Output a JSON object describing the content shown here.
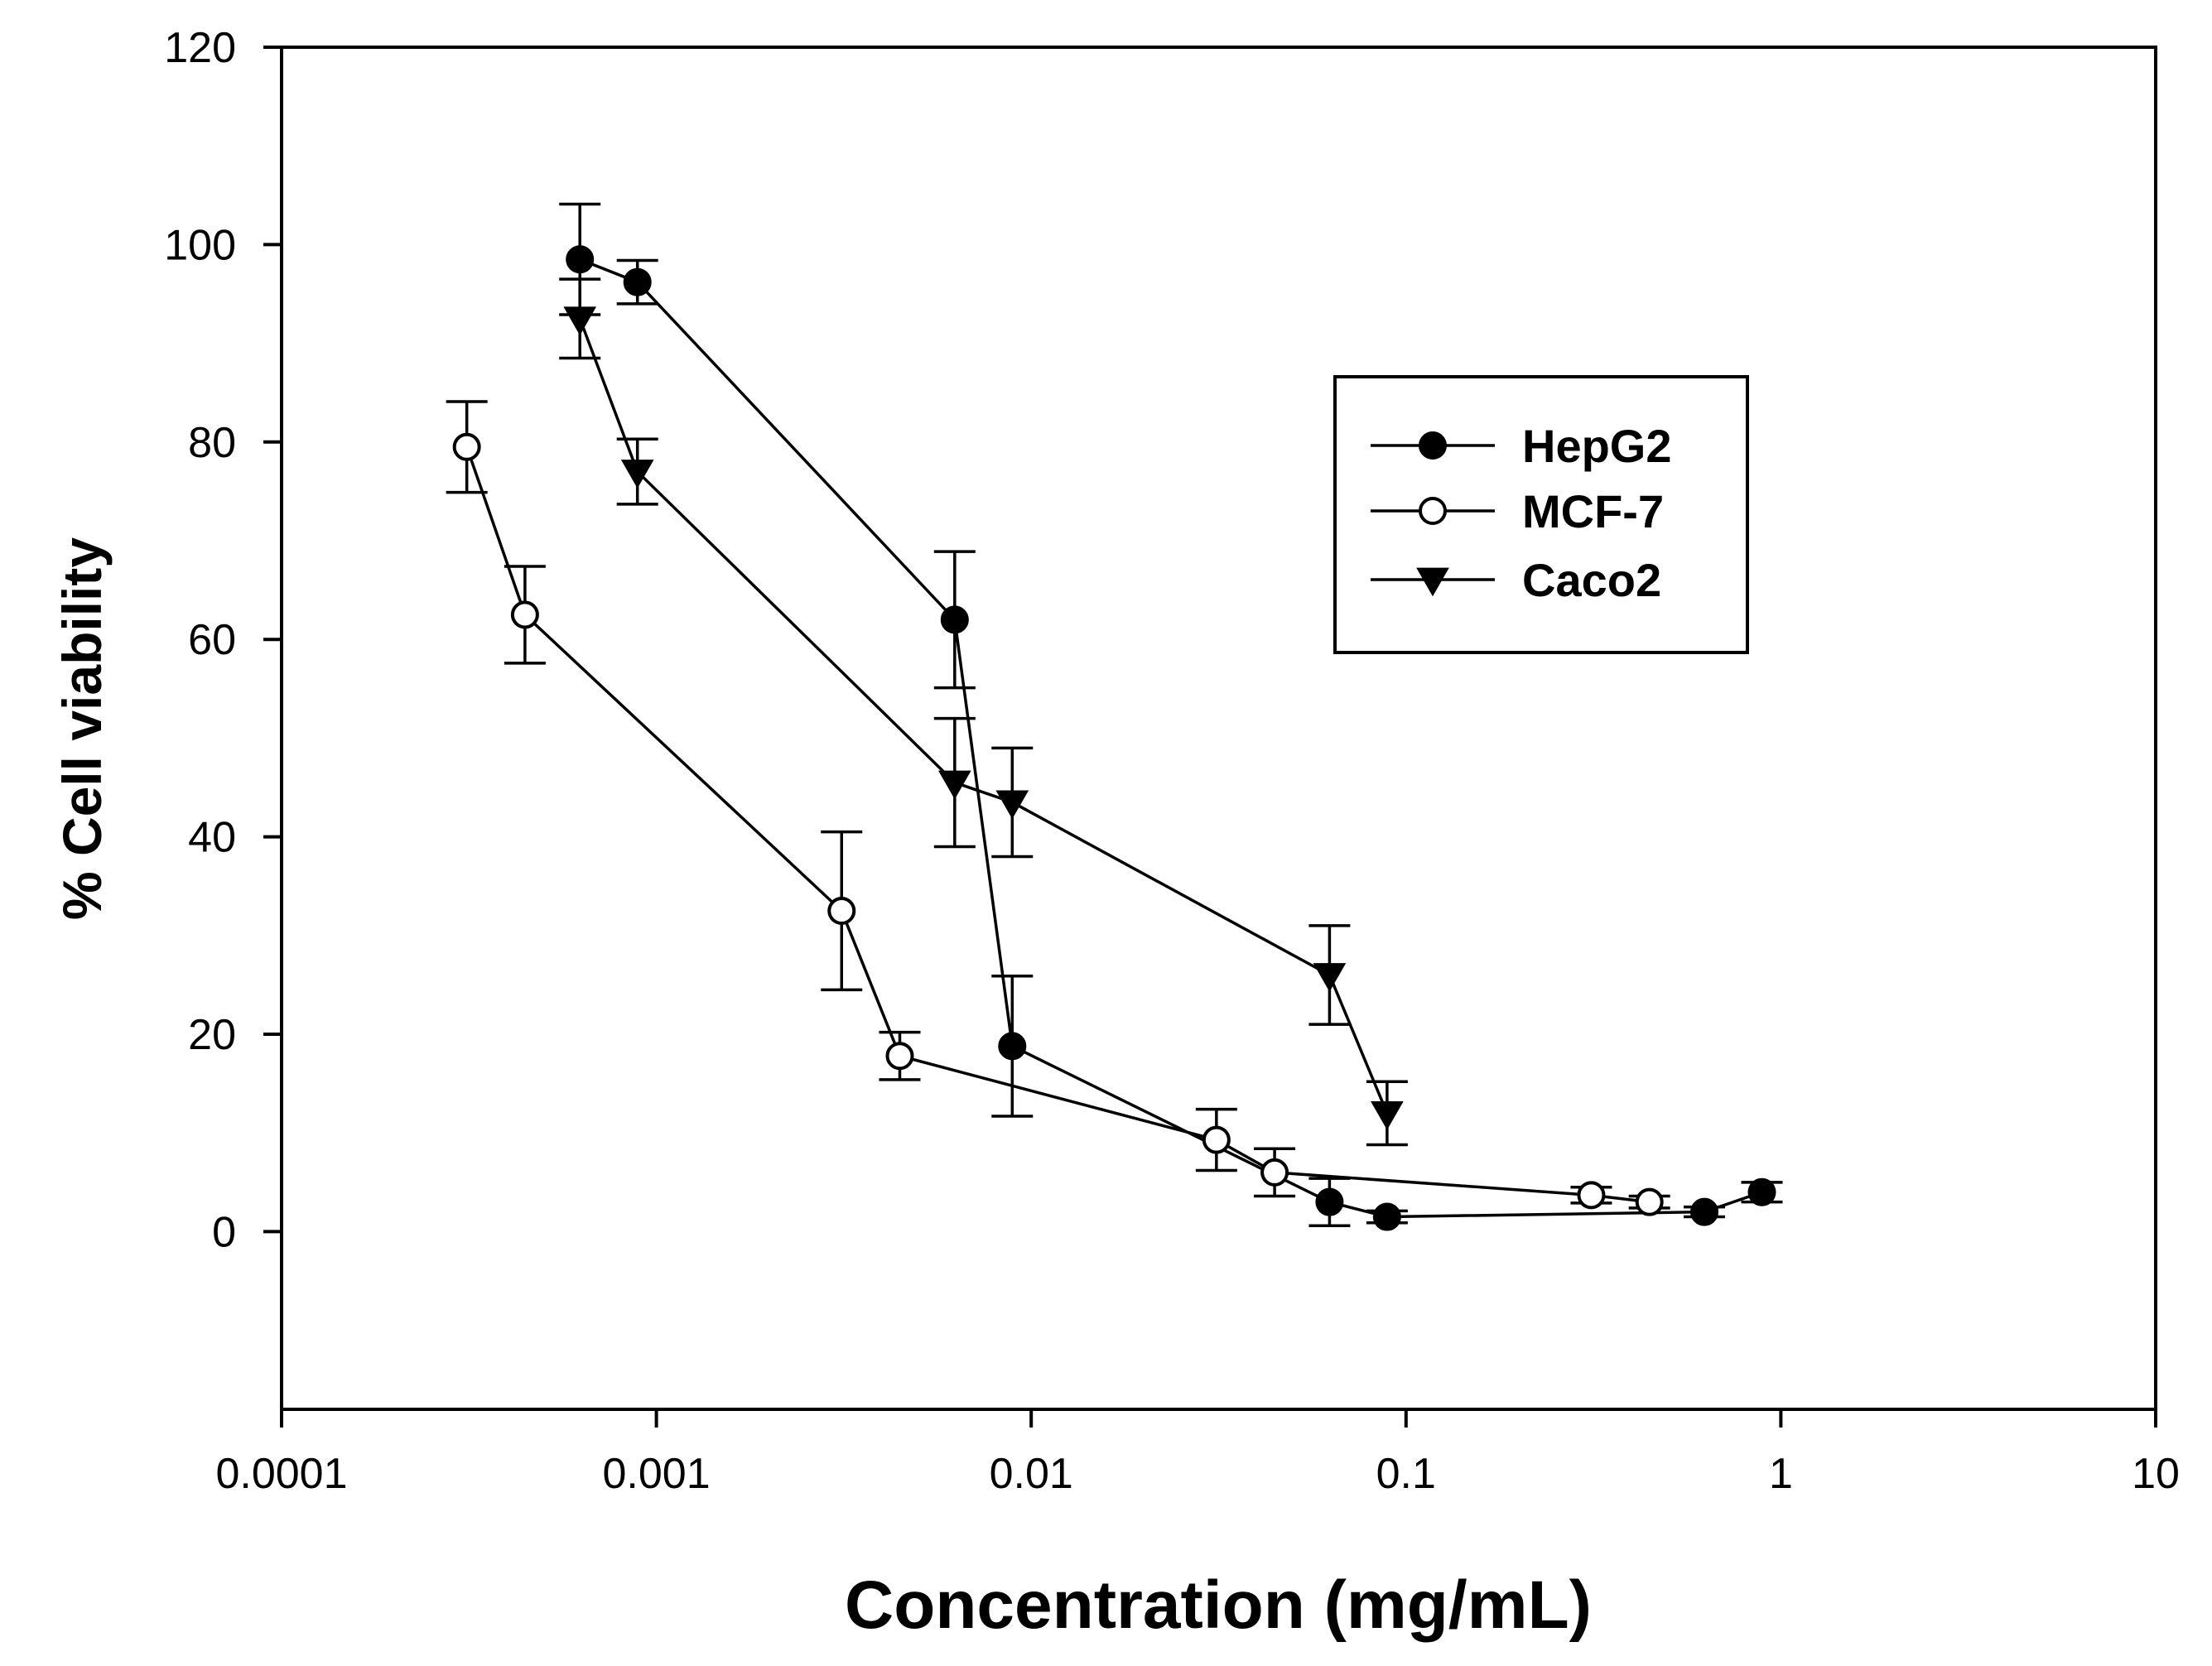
{
  "chart_data": {
    "type": "scatter",
    "title": "",
    "xlabel": "Concentration (mg/mL)",
    "ylabel": "% Cell viability",
    "x_scale": "log",
    "xlim": [
      0.0001,
      10
    ],
    "ylim": [
      -18,
      120
    ],
    "x_ticks": [
      0.0001,
      0.001,
      0.01,
      0.1,
      1,
      10
    ],
    "x_tick_labels": [
      "0.0001",
      "0.001",
      "0.01",
      "0.1",
      "1",
      "10"
    ],
    "y_ticks": [
      0,
      20,
      40,
      60,
      80,
      100,
      120
    ],
    "y_tick_labels": [
      "0",
      "20",
      "40",
      "60",
      "80",
      "100",
      "120"
    ],
    "grid": false,
    "legend_position": "upper-right",
    "series": [
      {
        "name": "HepG2",
        "marker": "filled-circle",
        "color": "#000000",
        "x": [
          0.000625,
          0.00089,
          0.00625,
          0.0089,
          0.0625,
          0.089,
          0.625,
          0.89
        ],
        "y": [
          98.5,
          96.2,
          62.0,
          18.8,
          3.0,
          1.5,
          2.0,
          4.0
        ],
        "err": [
          5.6,
          2.2,
          6.9,
          7.1,
          2.4,
          0.6,
          0.5,
          1.0
        ]
      },
      {
        "name": "MCF-7",
        "marker": "open-circle",
        "color": "#000000",
        "x": [
          0.000312,
          0.000446,
          0.00312,
          0.00446,
          0.0312,
          0.0446,
          0.312,
          0.446
        ],
        "y": [
          79.5,
          62.5,
          32.5,
          17.8,
          9.3,
          6.0,
          3.7,
          3.0
        ],
        "err": [
          4.6,
          4.9,
          8.0,
          2.4,
          3.1,
          2.4,
          0.8,
          0.6
        ]
      },
      {
        "name": "Caco2",
        "marker": "filled-triangle-down",
        "color": "#000000",
        "x": [
          0.000625,
          0.00089,
          0.00625,
          0.0089,
          0.0625,
          0.089
        ],
        "y": [
          92.5,
          77.0,
          45.5,
          43.5,
          26.0,
          12.0
        ],
        "err": [
          4.0,
          3.3,
          6.5,
          5.5,
          5.0,
          3.2
        ]
      }
    ]
  }
}
